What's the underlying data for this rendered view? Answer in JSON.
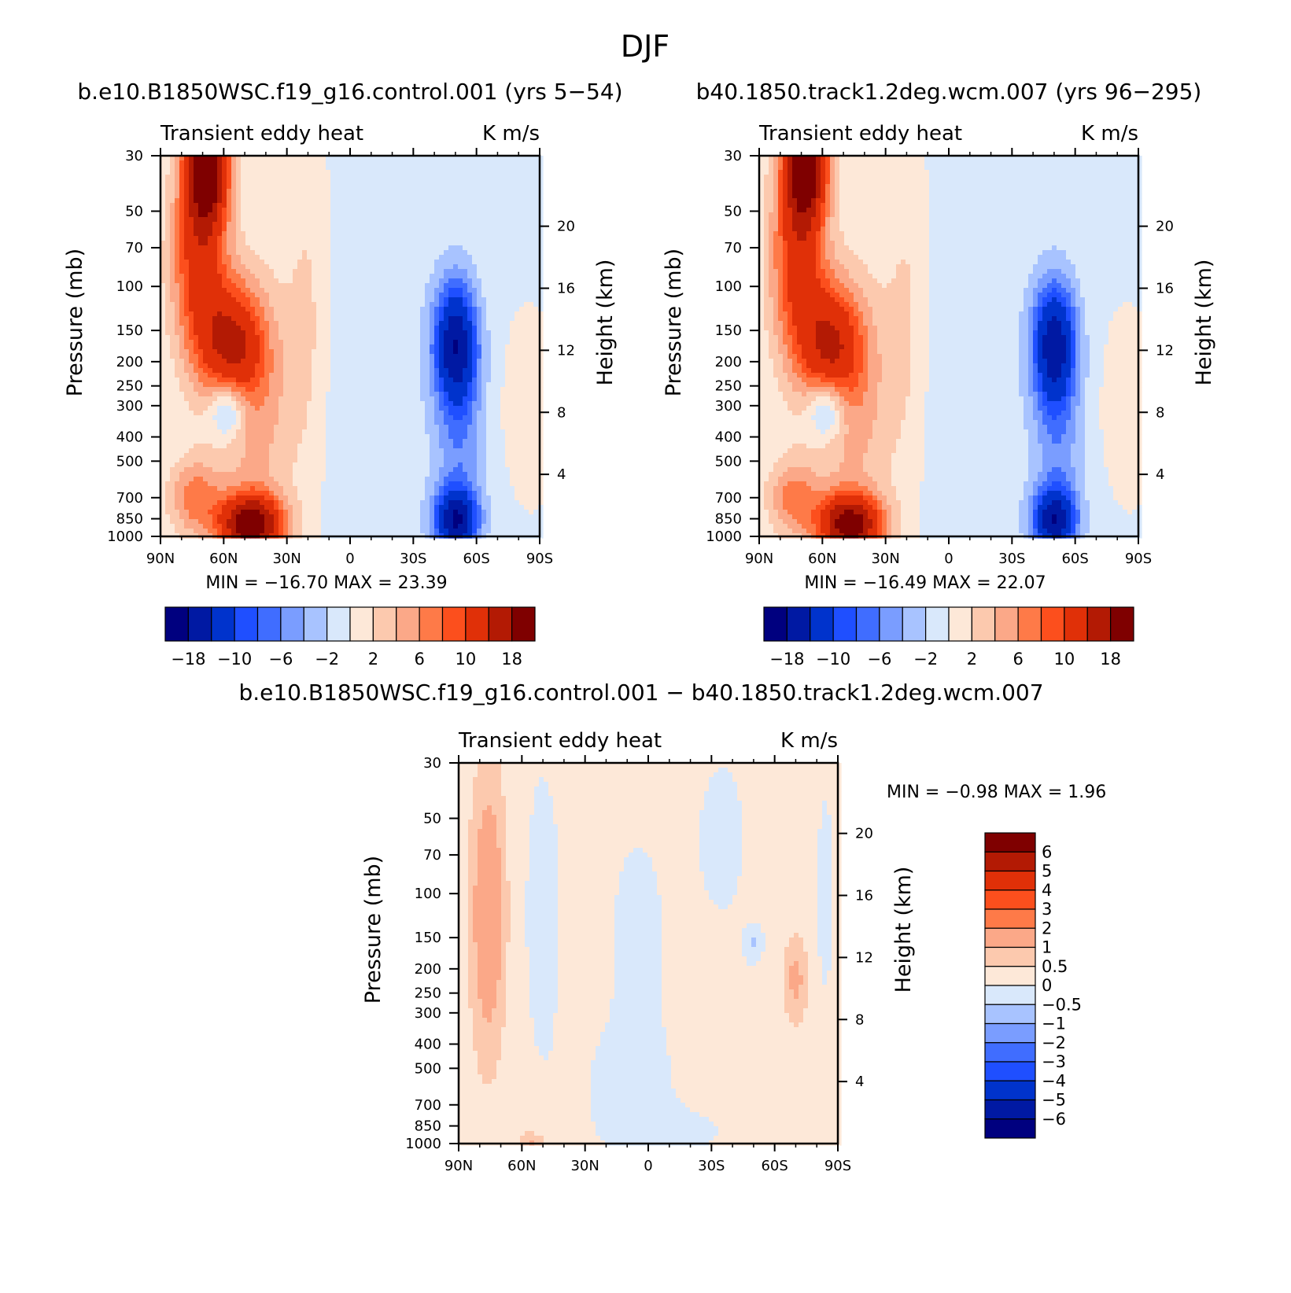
{
  "figure_title": "DJF",
  "colors": {
    "blue_scale": [
      "#00007f",
      "#0019a3",
      "#0033cc",
      "#1f4fff",
      "#406dff",
      "#7a9dff",
      "#a8c3ff",
      "#d9e8fb"
    ],
    "red_scale": [
      "#fde8d8",
      "#fcc9ae",
      "#fba888",
      "#fe7a48",
      "#fc4f1d",
      "#e03008",
      "#b31a04",
      "#7f0000"
    ]
  },
  "chart_data": [
    {
      "type": "heatmap",
      "title": "b.e10.B1850WSC.f19_g16.control.001 (yrs 5-54)",
      "left_string": "Transient eddy heat",
      "right_string": "K m/s",
      "xlabel": "",
      "ylabel": "Pressure (mb)",
      "ylabel_right": "Height (km)",
      "x_ticks": [
        "90N",
        "60N",
        "30N",
        "0",
        "30S",
        "60S",
        "90S"
      ],
      "y_ticks": [
        "30",
        "50",
        "70",
        "100",
        "150",
        "200",
        "250",
        "300",
        "400",
        "500",
        "700",
        "850",
        "1000"
      ],
      "y_right_ticks": [
        "20",
        "16",
        "12",
        "8",
        "4"
      ],
      "y_scale": "log",
      "stats": "MIN = -16.70   MAX =  23.39",
      "min": -16.7,
      "max": 23.39,
      "colorbar": {
        "orientation": "horizontal",
        "labels": [
          "-18",
          "-10",
          "-6",
          "-2",
          "2",
          "6",
          "10",
          "18"
        ],
        "colors": [
          "#00007f",
          "#0019a3",
          "#0033cc",
          "#1f4fff",
          "#406dff",
          "#7a9dff",
          "#a8c3ff",
          "#d9e8fb",
          "#fde8d8",
          "#fcc9ae",
          "#fba888",
          "#fe7a48",
          "#fc4f1d",
          "#e03008",
          "#b31a04",
          "#7f0000"
        ]
      }
    },
    {
      "type": "heatmap",
      "title": "b40.1850.track1.2deg.wcm.007 (yrs 96-295)",
      "left_string": "Transient eddy heat",
      "right_string": "K m/s",
      "xlabel": "",
      "ylabel": "Pressure (mb)",
      "ylabel_right": "Height (km)",
      "x_ticks": [
        "90N",
        "60N",
        "30N",
        "0",
        "30S",
        "60S",
        "90S"
      ],
      "y_ticks": [
        "30",
        "50",
        "70",
        "100",
        "150",
        "200",
        "250",
        "300",
        "400",
        "500",
        "700",
        "850",
        "1000"
      ],
      "y_right_ticks": [
        "20",
        "16",
        "12",
        "8",
        "4"
      ],
      "y_scale": "log",
      "stats": "MIN = -16.49   MAX =  22.07",
      "min": -16.49,
      "max": 22.07,
      "colorbar": {
        "orientation": "horizontal",
        "labels": [
          "-18",
          "-10",
          "-6",
          "-2",
          "2",
          "6",
          "10",
          "18"
        ],
        "colors": [
          "#00007f",
          "#0019a3",
          "#0033cc",
          "#1f4fff",
          "#406dff",
          "#7a9dff",
          "#a8c3ff",
          "#d9e8fb",
          "#fde8d8",
          "#fcc9ae",
          "#fba888",
          "#fe7a48",
          "#fc4f1d",
          "#e03008",
          "#b31a04",
          "#7f0000"
        ]
      }
    },
    {
      "type": "heatmap",
      "title": "b.e10.B1850WSC.f19_g16.control.001 - b40.1850.track1.2deg.wcm.007",
      "left_string": "Transient eddy heat",
      "right_string": "K m/s",
      "xlabel": "",
      "ylabel": "Pressure (mb)",
      "ylabel_right": "Height (km)",
      "x_ticks": [
        "90N",
        "60N",
        "30N",
        "0",
        "30S",
        "60S",
        "90S"
      ],
      "y_ticks": [
        "30",
        "50",
        "70",
        "100",
        "150",
        "200",
        "250",
        "300",
        "400",
        "500",
        "700",
        "850",
        "1000"
      ],
      "y_right_ticks": [
        "20",
        "16",
        "12",
        "8",
        "4"
      ],
      "y_scale": "log",
      "stats": "MIN =    -0.98   MAX =    1.96",
      "min": -0.98,
      "max": 1.96,
      "colorbar": {
        "orientation": "vertical",
        "labels": [
          "6",
          "5",
          "4",
          "3",
          "2",
          "1",
          "0.5",
          "0",
          "-0.5",
          "-1",
          "-2",
          "-3",
          "-4",
          "-5",
          "-6"
        ],
        "colors": [
          "#7f0000",
          "#b31a04",
          "#e03008",
          "#fc4f1d",
          "#fe7a48",
          "#fba888",
          "#fcc9ae",
          "#fde8d8",
          "#d9e8fb",
          "#a8c3ff",
          "#7a9dff",
          "#406dff",
          "#1f4fff",
          "#0033cc",
          "#0019a3",
          "#00007f"
        ]
      }
    }
  ]
}
